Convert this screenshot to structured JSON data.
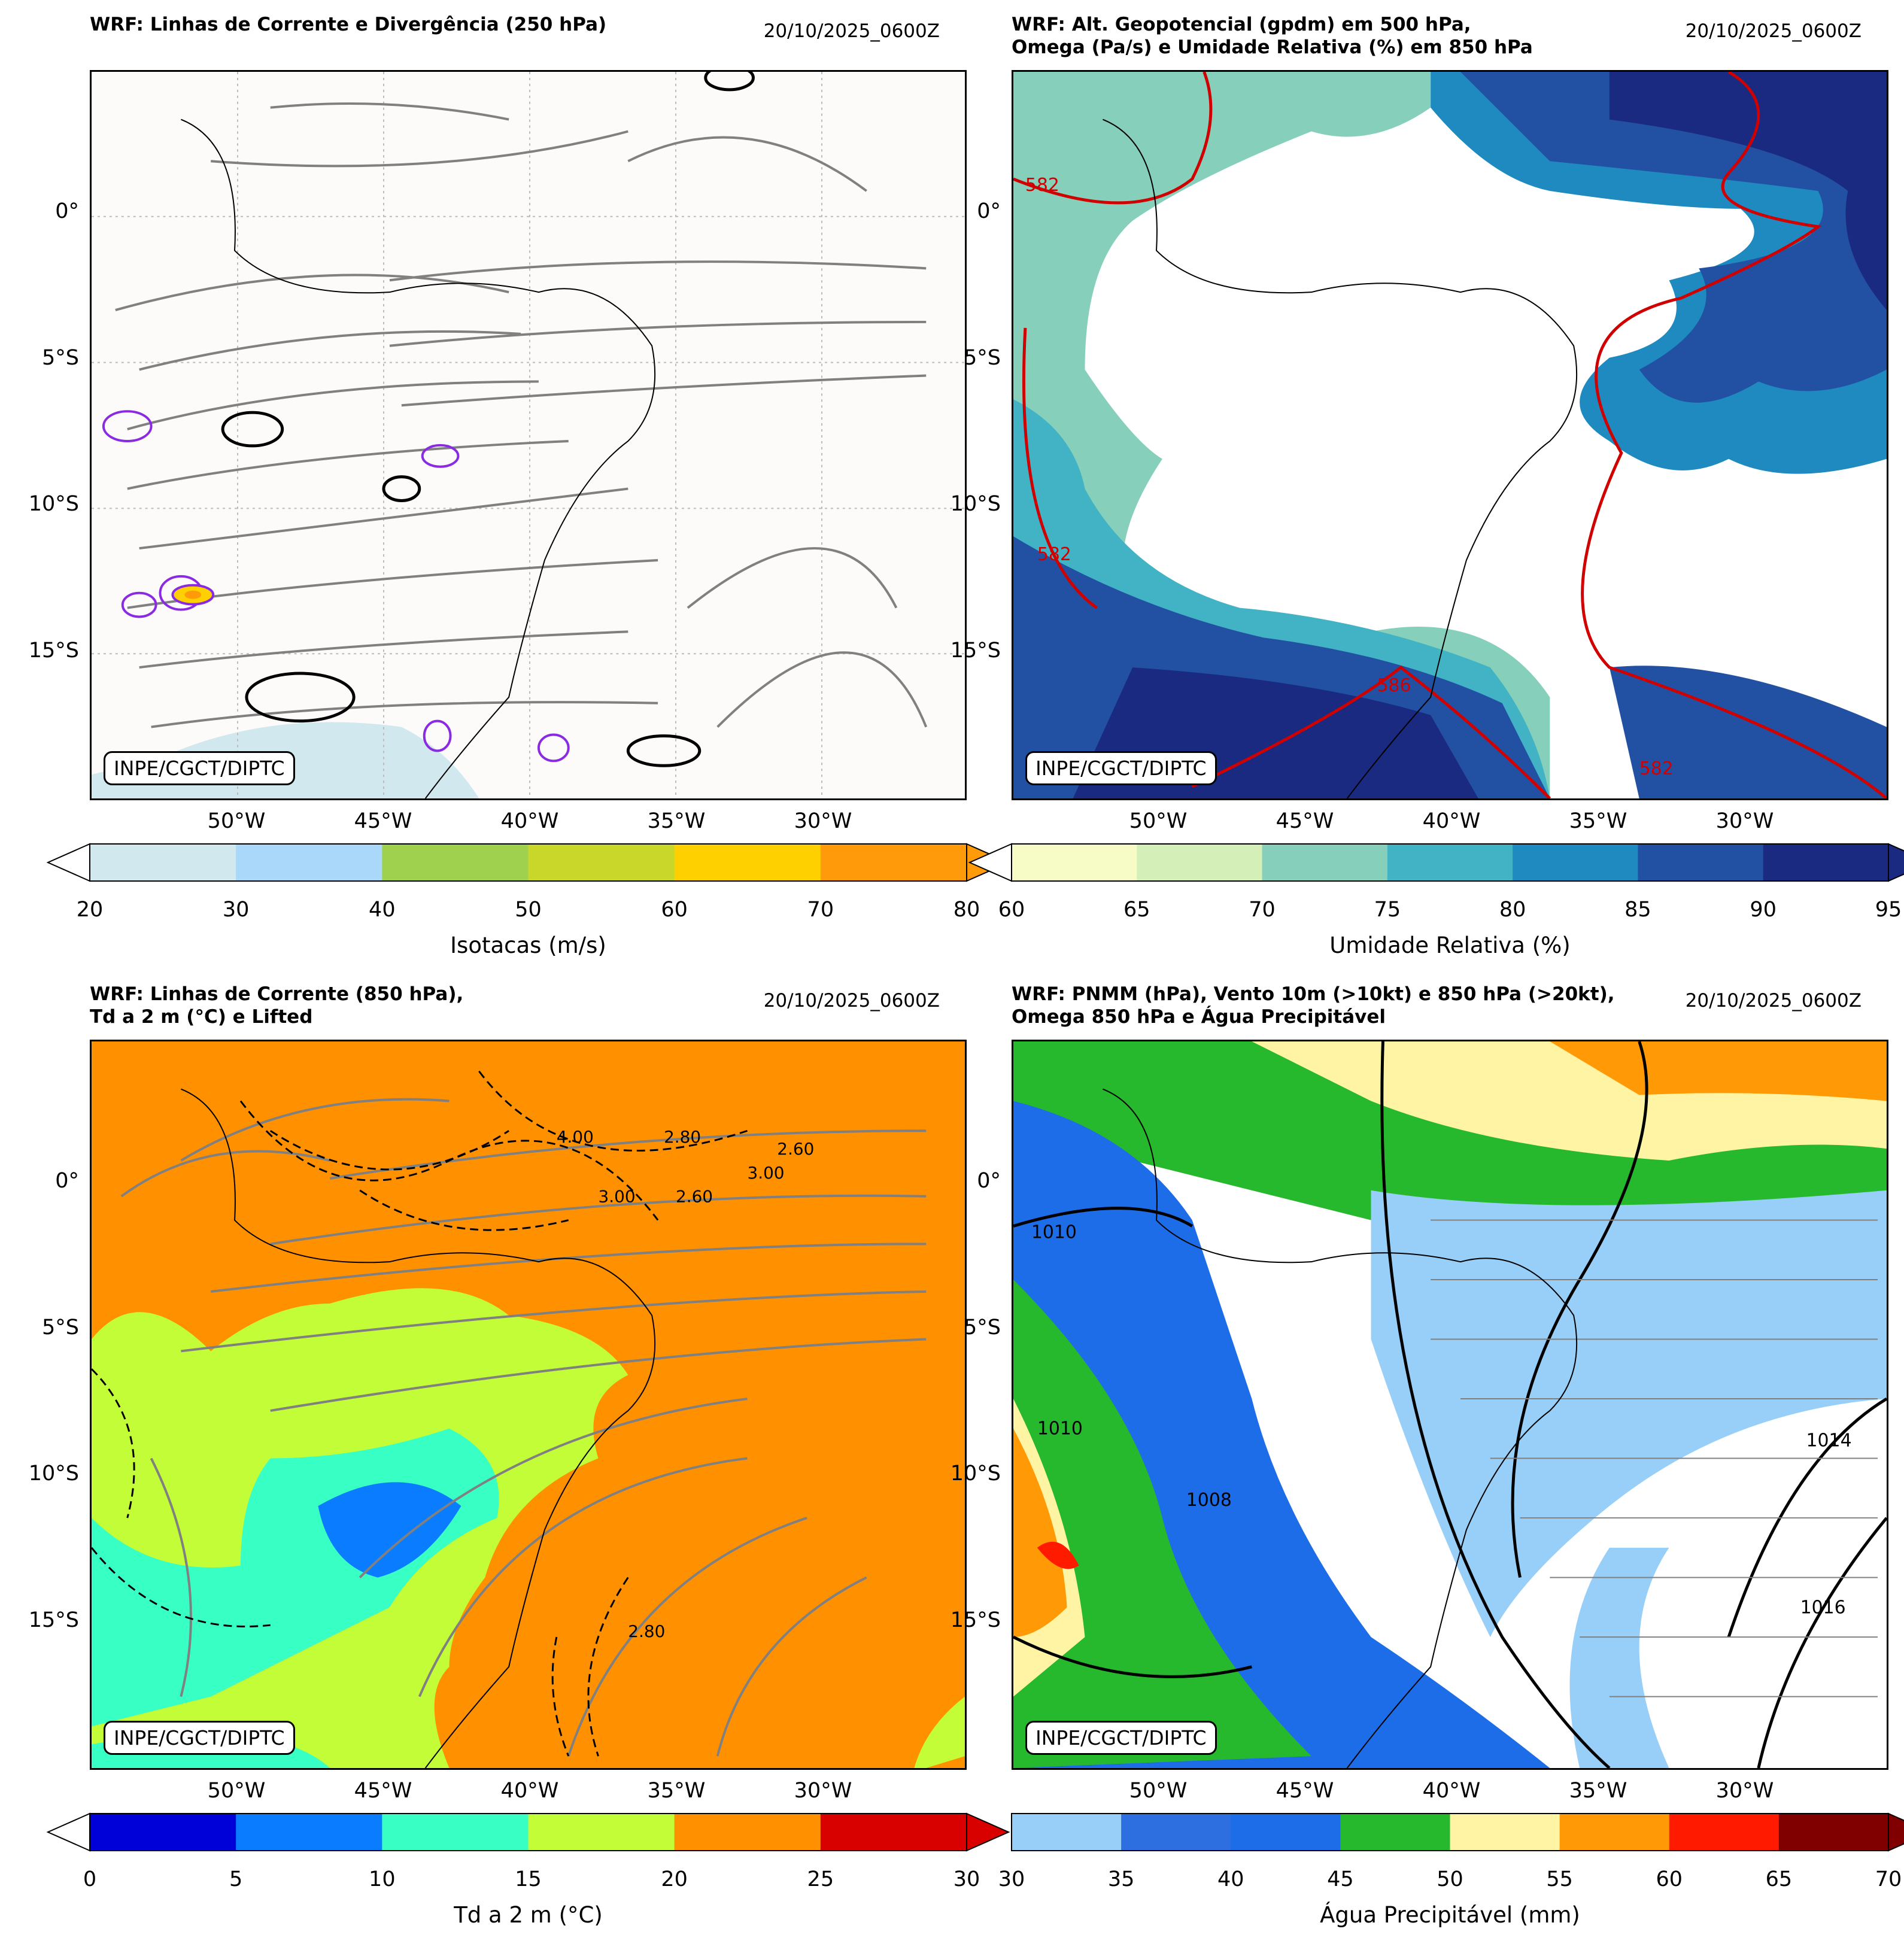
{
  "credit": "INPE/CGCT/DIPTC",
  "lat_labels": [
    "0°",
    "5°S",
    "10°S",
    "15°S"
  ],
  "lon_labels": [
    "50°W",
    "45°W",
    "40°W",
    "35°W",
    "30°W"
  ],
  "panels": [
    {
      "title": "WRF: Linhas de Corrente e Divergência (250 hPa)",
      "time": "20/10/2025_0600Z",
      "colorbar": {
        "label": "Isotacas (m/s)",
        "ticks": [
          "20",
          "30",
          "40",
          "50",
          "60",
          "70",
          "80"
        ],
        "colors": [
          "#d0e8ee",
          "#aad8fb",
          "#9fd04e",
          "#c9d62a",
          "#ffd000",
          "#ff9a0a"
        ],
        "extend": "both"
      }
    },
    {
      "title": "WRF: Alt. Geopotencial (gpdm) em 500 hPa,\nOmega (Pa/s) e Umidade Relativa (%) em 850 hPa",
      "time": "20/10/2025_0600Z",
      "contour_labels": [
        "582",
        "582",
        "582",
        "586"
      ],
      "colorbar": {
        "label": "Umidade Relativa (%)",
        "ticks": [
          "60",
          "65",
          "70",
          "75",
          "80",
          "85",
          "90",
          "95"
        ],
        "colors": [
          "#f7fcc6",
          "#d4efb8",
          "#86d0bb",
          "#41b3c4",
          "#1e8ac0",
          "#2251a3",
          "#1a2a80"
        ],
        "extend": "both"
      }
    },
    {
      "title": "WRF: Linhas de Corrente (850 hPa),\nTd a 2 m (°C) e Lifted",
      "time": "20/10/2025_0600Z",
      "contour_labels": [
        "4.00",
        "3.00",
        "2.60",
        "2.80",
        "3.00",
        "2.60",
        "2.80"
      ],
      "colorbar": {
        "label": "Td a 2 m (°C)",
        "ticks": [
          "0",
          "5",
          "10",
          "15",
          "20",
          "25",
          "30"
        ],
        "colors": [
          "#0000d8",
          "#0a7cff",
          "#38ffc4",
          "#c3fd38",
          "#ff9000",
          "#d90000"
        ],
        "extend": "both"
      }
    },
    {
      "title": "WRF: PNMM (hPa), Vento 10m (>10kt) e 850 hPa (>20kt),\nOmega 850 hPa e Água Precipitável",
      "time": "20/10/2025_0600Z",
      "contour_labels": [
        "1010",
        "1010",
        "1014",
        "1016",
        "1008"
      ],
      "colorbar": {
        "label": "Água Precipitável (mm)",
        "ticks": [
          "30",
          "35",
          "40",
          "45",
          "50",
          "55",
          "60",
          "65",
          "70"
        ],
        "colors": [
          "#98cff8",
          "#2d6ee0",
          "#1e6de8",
          "#26b82d",
          "#fff4a3",
          "#ff9a06",
          "#ff1a00",
          "#800000"
        ],
        "extend": "max"
      }
    }
  ]
}
